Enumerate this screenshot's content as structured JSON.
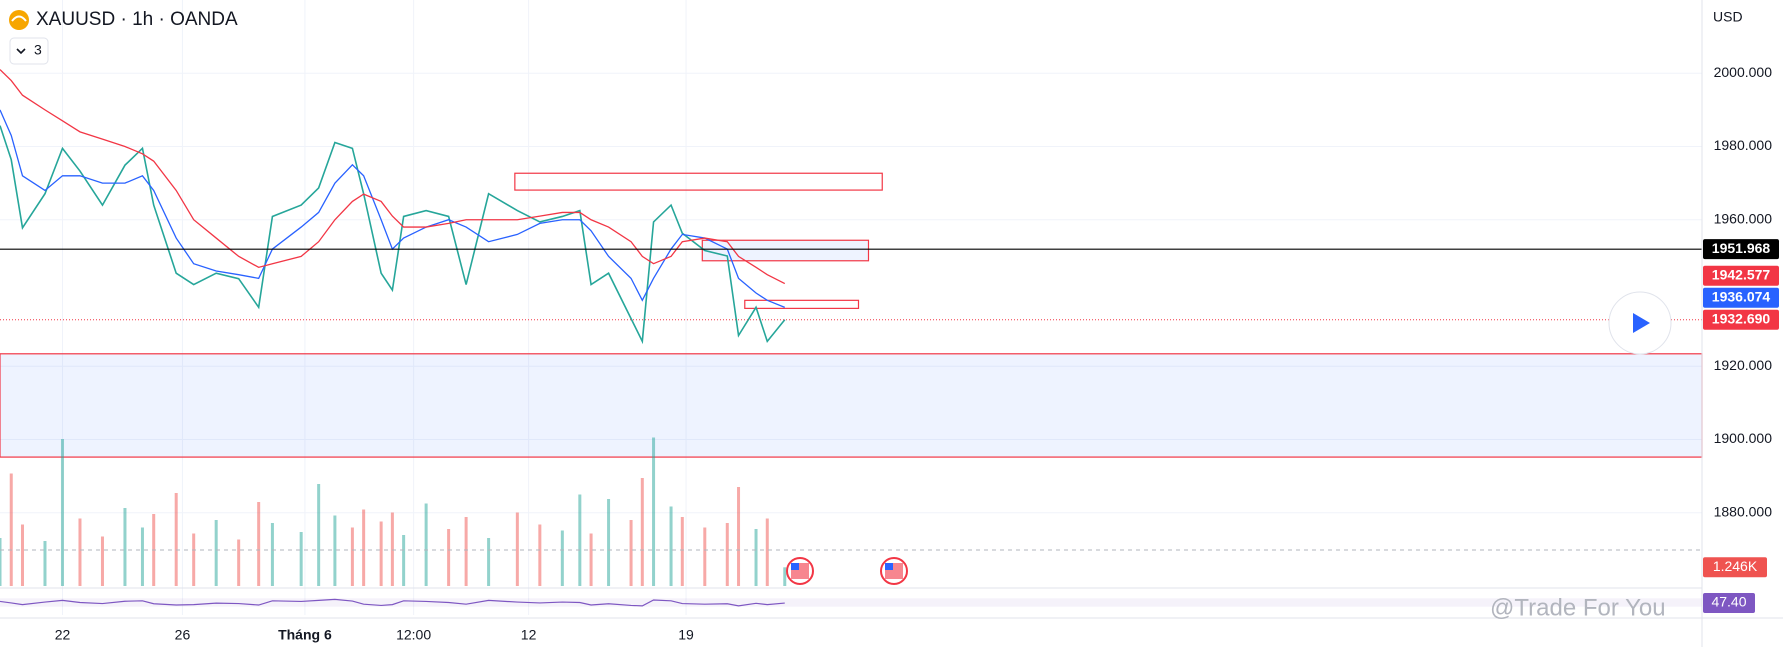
{
  "chart_data": {
    "type": "line",
    "title": "XAUUSD · 1h · OANDA",
    "indicators_count": 3,
    "currency": "USD",
    "watermark": "@Trade For You",
    "x": [
      0,
      9,
      18,
      36,
      50,
      64,
      82,
      100,
      114,
      123,
      141,
      155,
      173,
      191,
      207,
      218,
      241,
      255,
      268,
      282,
      291,
      305,
      314,
      323,
      341,
      359,
      373,
      391,
      414,
      432,
      450,
      464,
      473,
      487,
      505,
      514,
      523,
      537,
      546,
      564,
      582,
      591,
      605,
      614,
      628
    ],
    "xlim": [
      0,
      1362
    ],
    "xticks": [
      {
        "value": 50,
        "label": "22"
      },
      {
        "value": 146,
        "label": "26"
      },
      {
        "value": 244,
        "label": "Tháng 6"
      },
      {
        "value": 331,
        "label": "12:00"
      },
      {
        "value": 423,
        "label": "12"
      },
      {
        "value": 549,
        "label": "19"
      }
    ],
    "ylim": [
      1860,
      2020
    ],
    "yticks": [
      {
        "value": 1880,
        "label": "1880.000"
      },
      {
        "value": 1900,
        "label": "1900.000"
      },
      {
        "value": 1920,
        "label": "1920.000"
      },
      {
        "value": 1960,
        "label": "1960.000"
      },
      {
        "value": 1980,
        "label": "1980.000"
      },
      {
        "value": 2000,
        "label": "2000.000"
      }
    ],
    "grid": true,
    "series": [
      {
        "color": "#26a69a",
        "values": [
          1985.7,
          1976.4,
          1957.8,
          1967.1,
          1979.5,
          1973.3,
          1964.0,
          1974.9,
          1979.5,
          1964.0,
          1945.4,
          1942.3,
          1945.4,
          1943.9,
          1936.1,
          1960.9,
          1964.0,
          1968.7,
          1981.1,
          1979.5,
          1967.1,
          1945.4,
          1940.8,
          1960.9,
          1962.5,
          1960.9,
          1942.3,
          1967.1,
          1962.5,
          1959.4,
          1960.9,
          1962.5,
          1942.3,
          1945.4,
          1933.0,
          1926.8,
          1959.4,
          1964.0,
          1956.3,
          1951.6,
          1950.1,
          1928.4,
          1936.1,
          1926.8,
          1932.69
        ]
      },
      {
        "color": "#2962ff",
        "values": [
          1990,
          1983,
          1972,
          1968,
          1972,
          1972,
          1970,
          1970,
          1972,
          1968,
          1955,
          1948,
          1946,
          1945,
          1944,
          1952,
          1958,
          1962,
          1970,
          1975,
          1972,
          1960,
          1952,
          1955,
          1958,
          1960,
          1958,
          1954,
          1956,
          1959,
          1960,
          1960,
          1957,
          1950,
          1944,
          1938,
          1944,
          1952,
          1956,
          1955,
          1952,
          1944,
          1940,
          1938,
          1936.074
        ]
      },
      {
        "color": "#f23645",
        "values": [
          2001,
          1998,
          1994,
          1990,
          1987,
          1984,
          1982,
          1980,
          1978,
          1976,
          1968,
          1960,
          1955,
          1950,
          1947,
          1948,
          1950,
          1954,
          1960,
          1965,
          1967,
          1965,
          1961,
          1958,
          1958,
          1959,
          1960,
          1960,
          1960,
          1961,
          1962,
          1962,
          1960,
          1958,
          1954,
          1950,
          1948,
          1950,
          1954,
          1955,
          1954,
          1950,
          1947,
          1945,
          1942.577
        ]
      }
    ],
    "zones": [
      {
        "xrange": [
          412,
          706
        ],
        "yrange": [
          1968.1,
          1972.7
        ],
        "color": "#f23645",
        "fill": "rgba(255,255,255,0)"
      },
      {
        "xrange": [
          562,
          695
        ],
        "yrange": [
          1948.8,
          1954.4
        ],
        "color": "#f23645",
        "fill": "rgba(41,98,255,0.08)"
      },
      {
        "xrange": [
          596,
          687
        ],
        "yrange": [
          1935.8,
          1938.0
        ],
        "color": "#f23645",
        "fill": "rgba(255,255,255,0)"
      },
      {
        "xrange": [
          0,
          1362
        ],
        "yrange": [
          1895.2,
          1923.4
        ],
        "color": "#f23645",
        "fill": "rgba(41,98,255,0.08)"
      }
    ],
    "price_labels": [
      {
        "value": 1951.968,
        "label": "1951.968",
        "color": "#000000",
        "line": "solid"
      },
      {
        "value": 1942.577,
        "label": "1942.577",
        "color": "#f23645",
        "line": "none"
      },
      {
        "value": 1936.074,
        "label": "1936.074",
        "color": "#2962ff",
        "line": "none"
      },
      {
        "value": 1932.69,
        "label": "1932.690",
        "color": "#f23645",
        "line": "dotted"
      }
    ],
    "volume": {
      "ylim": [
        0,
        10
      ],
      "values": [
        3.2,
        7.5,
        4.1,
        3.0,
        9.8,
        4.5,
        3.3,
        5.2,
        3.9,
        4.8,
        6.2,
        3.5,
        4.4,
        3.1,
        5.6,
        4.2,
        3.6,
        6.8,
        4.7,
        3.9,
        5.1,
        4.3,
        4.9,
        3.4,
        5.5,
        3.8,
        4.6,
        3.2,
        4.9,
        4.1,
        3.7,
        6.1,
        3.5,
        5.8,
        4.4,
        7.2,
        9.9,
        5.3,
        4.6,
        3.9,
        4.2,
        6.6,
        3.8,
        4.5,
        1.246
      ],
      "last_label": {
        "value": 1.246,
        "label": "1.246K"
      }
    },
    "rsi": {
      "ylim": [
        0,
        100
      ],
      "color": "#7e57c2",
      "values": [
        55,
        48,
        40,
        52,
        60,
        50,
        45,
        56,
        58,
        44,
        38,
        40,
        47,
        45,
        38,
        58,
        55,
        60,
        65,
        57,
        42,
        36,
        40,
        58,
        55,
        50,
        42,
        60,
        52,
        48,
        52,
        50,
        38,
        44,
        36,
        34,
        62,
        58,
        45,
        42,
        44,
        34,
        46,
        40,
        47.4
      ],
      "last_label": {
        "value": 47.4,
        "label": "47.40"
      }
    }
  }
}
